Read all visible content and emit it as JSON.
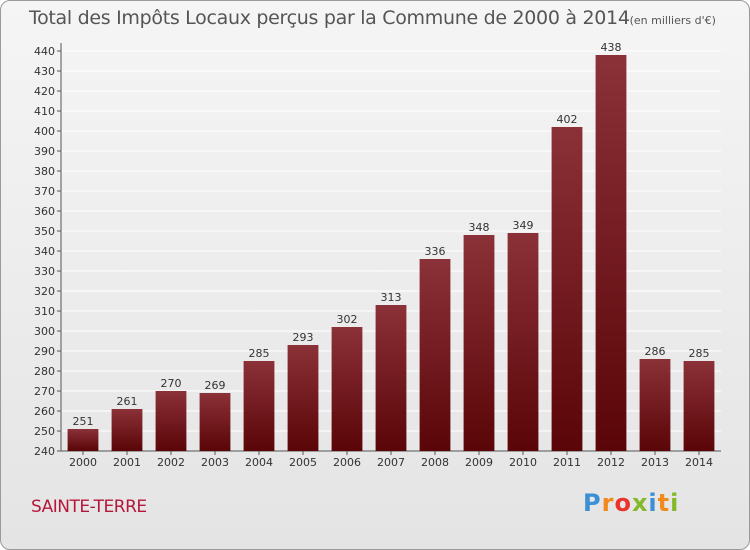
{
  "header": {
    "title": "Total des Impôts Locaux perçus par la Commune de 2000 à 2014",
    "unit": "(en milliers d'€)"
  },
  "commune_name": "SAINTE-TERRE",
  "logo": {
    "text": "Proxiti",
    "letters": [
      "P",
      "r",
      "o",
      "x",
      "i",
      "t",
      "i"
    ]
  },
  "colors": {
    "bar_top": "#8b3138",
    "bar_bottom": "#5a0508",
    "label": "#333333",
    "grid": "#ffffff"
  },
  "chart_data": {
    "type": "bar",
    "title": "Total des Impôts Locaux perçus par la Commune de 2000 à 2014",
    "subtitle": "(en milliers d'€)",
    "xlabel": "",
    "ylabel": "",
    "categories": [
      "2000",
      "2001",
      "2002",
      "2003",
      "2004",
      "2005",
      "2006",
      "2007",
      "2008",
      "2009",
      "2010",
      "2011",
      "2012",
      "2013",
      "2014"
    ],
    "values": [
      251,
      261,
      270,
      269,
      285,
      293,
      302,
      313,
      336,
      348,
      349,
      402,
      438,
      286,
      285
    ],
    "ylim": [
      240,
      440
    ],
    "ytick_step": 10,
    "grid": true
  }
}
